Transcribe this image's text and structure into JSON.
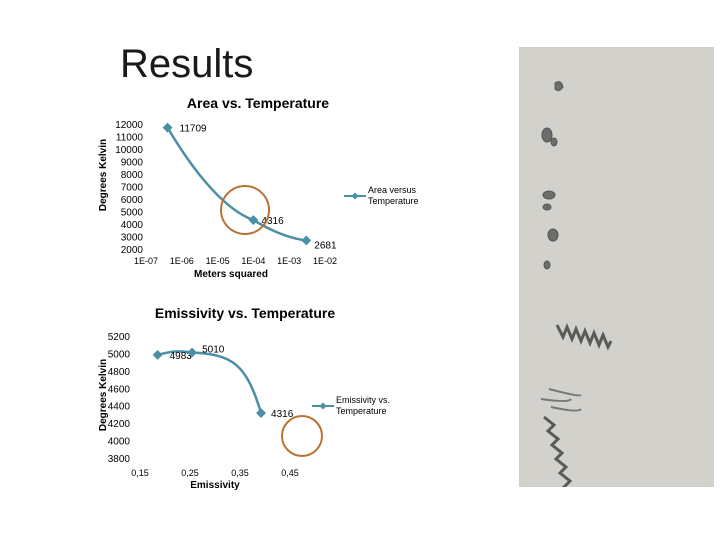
{
  "slide": {
    "title": "Results"
  },
  "chart_data": [
    {
      "type": "line",
      "title": "Area vs. Temperature",
      "xlabel": "Meters squared",
      "ylabel": "Degrees Kelvin",
      "x_scale": "log",
      "xlim": [
        1e-07,
        0.01
      ],
      "ylim": [
        2000,
        12000
      ],
      "x_tick_labels": [
        "1E-07",
        "1E-06",
        "1E-05",
        "1E-04",
        "1E-03",
        "1E-02"
      ],
      "y_tick_labels": [
        "12000",
        "11000",
        "10000",
        "9000",
        "8000",
        "7000",
        "6000",
        "5000",
        "4000",
        "3000",
        "2000"
      ],
      "series": [
        {
          "name": "Area versus Temperature",
          "color": "#4a8fa6",
          "points": [
            {
              "x": 4e-07,
              "y": 11709,
              "label": "11709"
            },
            {
              "x": 0.0001,
              "y": 4316,
              "label": "4316"
            },
            {
              "x": 0.003,
              "y": 2681,
              "label": "2681"
            }
          ]
        }
      ],
      "legend": "right",
      "grid": false,
      "annotation": {
        "shape": "circle",
        "color": "#b87333",
        "around_label": "4316"
      }
    },
    {
      "type": "line",
      "title": "Emissivity vs. Temperature",
      "xlabel": "Emissivity",
      "ylabel": "Degrees Kelvin",
      "xlim": [
        0.1,
        0.5
      ],
      "ylim": [
        3800,
        5200
      ],
      "x_tick_labels": [
        "0,15",
        "0,25",
        "0,35",
        "0,45"
      ],
      "y_tick_labels": [
        "5200",
        "5000",
        "4800",
        "4600",
        "4400",
        "4200",
        "4000",
        "3800"
      ],
      "series": [
        {
          "name": "Emissivity vs. Temperature",
          "color": "#4a8fa6",
          "points": [
            {
              "x": 0.15,
              "y": 4983,
              "label": "4983"
            },
            {
              "x": 0.22,
              "y": 5010,
              "label": "5010"
            },
            {
              "x": 0.36,
              "y": 4316,
              "label": "4316"
            }
          ]
        }
      ],
      "legend": "right",
      "grid": false,
      "annotation": {
        "shape": "circle",
        "color": "#b87333",
        "position": "below-last-point"
      }
    }
  ]
}
